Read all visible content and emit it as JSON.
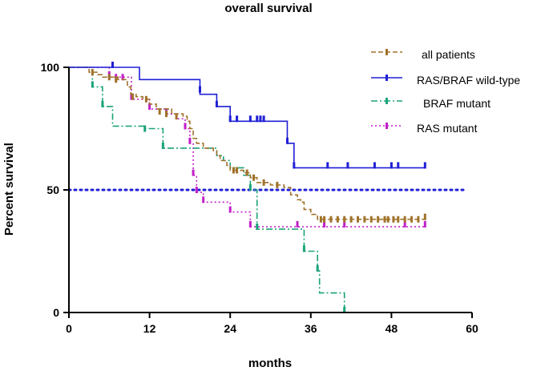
{
  "chart_data": {
    "type": "line",
    "subtype": "kaplan-meier",
    "title": "overall survival",
    "xlabel": "months",
    "ylabel": "Percent survival",
    "xlim": [
      0,
      60
    ],
    "ylim": [
      0,
      100
    ],
    "x_ticks": [
      0,
      12,
      24,
      36,
      48,
      60
    ],
    "y_ticks": [
      0,
      50,
      100
    ],
    "x_tick_labels": [
      "0",
      "12",
      "24",
      "36",
      "48",
      "60"
    ],
    "y_tick_labels": [
      "0",
      "50",
      "100"
    ],
    "reference_line": {
      "y": 50,
      "color": "#1f1fd6",
      "style": "dotted"
    },
    "legend_position": "top-right",
    "series": [
      {
        "name": "all patients",
        "color": "#a0722a",
        "dash": "6,3",
        "steps": [
          [
            0,
            100
          ],
          [
            3,
            98
          ],
          [
            4.3,
            97
          ],
          [
            5,
            96
          ],
          [
            7.3,
            95
          ],
          [
            8.7,
            92
          ],
          [
            9.2,
            89
          ],
          [
            10,
            88
          ],
          [
            11,
            87
          ],
          [
            12,
            85
          ],
          [
            13,
            83
          ],
          [
            15.3,
            81
          ],
          [
            17,
            80
          ],
          [
            17.6,
            78
          ],
          [
            18,
            75
          ],
          [
            18.5,
            71
          ],
          [
            19,
            69
          ],
          [
            20,
            67
          ],
          [
            21.5,
            66
          ],
          [
            22,
            64
          ],
          [
            22.5,
            62
          ],
          [
            23.5,
            60
          ],
          [
            24,
            58
          ],
          [
            26,
            57
          ],
          [
            27,
            55
          ],
          [
            28,
            53
          ],
          [
            30,
            52
          ],
          [
            32,
            51
          ],
          [
            33,
            48
          ],
          [
            34,
            46
          ],
          [
            34.5,
            45
          ],
          [
            35,
            42
          ],
          [
            36,
            40
          ],
          [
            37,
            38
          ]
        ],
        "end": 53,
        "censors": [
          [
            3.5,
            98
          ],
          [
            6,
            96
          ],
          [
            7,
            95
          ],
          [
            9.5,
            88
          ],
          [
            11.5,
            87
          ],
          [
            13.5,
            82
          ],
          [
            14.5,
            81
          ],
          [
            16,
            80
          ],
          [
            24.5,
            58
          ],
          [
            25,
            58
          ],
          [
            26.5,
            57
          ],
          [
            27.5,
            55
          ],
          [
            29,
            53
          ],
          [
            31,
            52
          ],
          [
            37.5,
            38
          ],
          [
            38,
            38
          ],
          [
            39,
            38
          ],
          [
            40,
            38
          ],
          [
            41,
            38
          ],
          [
            42,
            38
          ],
          [
            43,
            38
          ],
          [
            44,
            38
          ],
          [
            45,
            38
          ],
          [
            46,
            38
          ],
          [
            47,
            38
          ],
          [
            47.5,
            38
          ],
          [
            48.3,
            38
          ],
          [
            49,
            38
          ],
          [
            50,
            38
          ],
          [
            51,
            38
          ],
          [
            52,
            38
          ],
          [
            53,
            39
          ]
        ]
      },
      {
        "name": "RAS/BRAF wild-type",
        "color": "#1f1fd6",
        "dash": "",
        "steps": [
          [
            0,
            100
          ],
          [
            10.5,
            95
          ],
          [
            19.5,
            89
          ],
          [
            22,
            84
          ],
          [
            24,
            78
          ],
          [
            32.5,
            69
          ],
          [
            33.5,
            59
          ]
        ],
        "end": 53,
        "censors": [
          [
            6.5,
            101
          ],
          [
            19.5,
            91
          ],
          [
            22,
            85
          ],
          [
            24,
            79
          ],
          [
            25,
            79
          ],
          [
            27,
            79
          ],
          [
            28,
            79
          ],
          [
            28.5,
            79
          ],
          [
            29,
            79
          ],
          [
            32.5,
            70
          ],
          [
            33.5,
            60
          ],
          [
            38.5,
            60
          ],
          [
            41.5,
            60
          ],
          [
            45.5,
            60
          ],
          [
            48,
            60
          ],
          [
            49,
            60
          ],
          [
            53,
            60
          ]
        ]
      },
      {
        "name": "BRAF mutant",
        "color": "#1aa37a",
        "dash": "8,3,2,3",
        "steps": [
          [
            0,
            100
          ],
          [
            3.5,
            92
          ],
          [
            5,
            84
          ],
          [
            6.5,
            76
          ],
          [
            11.3,
            75
          ],
          [
            14,
            67
          ],
          [
            22,
            64
          ],
          [
            23,
            62
          ],
          [
            24,
            59
          ],
          [
            26,
            56
          ],
          [
            27,
            50
          ],
          [
            28,
            34
          ],
          [
            34,
            34
          ],
          [
            35,
            25
          ],
          [
            37,
            17
          ],
          [
            37.3,
            8
          ],
          [
            41,
            0
          ]
        ],
        "end": 41,
        "censors": [
          [
            3.5,
            93
          ],
          [
            5,
            85
          ],
          [
            11.3,
            75
          ],
          [
            14,
            68
          ],
          [
            27,
            51
          ],
          [
            28,
            35
          ],
          [
            35,
            26
          ],
          [
            37,
            18
          ],
          [
            41,
            1
          ]
        ]
      },
      {
        "name": "RAS mutant",
        "color": "#c21fc9",
        "dash": "2,3",
        "steps": [
          [
            0,
            100
          ],
          [
            6,
            96
          ],
          [
            9.3,
            87
          ],
          [
            12,
            83
          ],
          [
            14.5,
            81
          ],
          [
            16,
            79
          ],
          [
            17.3,
            75
          ],
          [
            18,
            69
          ],
          [
            18.5,
            56
          ],
          [
            19,
            49
          ],
          [
            20,
            45
          ],
          [
            24,
            41
          ],
          [
            27,
            35
          ],
          [
            32,
            35
          ],
          [
            34,
            35
          ]
        ],
        "end": 53,
        "censors": [
          [
            6,
            97
          ],
          [
            7,
            96
          ],
          [
            8,
            96
          ],
          [
            9.3,
            88
          ],
          [
            12,
            84
          ],
          [
            14.5,
            82
          ],
          [
            17.3,
            76
          ],
          [
            18,
            70
          ],
          [
            18.5,
            57
          ],
          [
            19,
            50
          ],
          [
            20,
            46
          ],
          [
            24,
            42
          ],
          [
            27,
            36
          ],
          [
            34,
            36
          ],
          [
            38,
            36
          ],
          [
            41,
            36
          ],
          [
            50,
            36
          ],
          [
            53,
            36
          ]
        ]
      }
    ]
  }
}
